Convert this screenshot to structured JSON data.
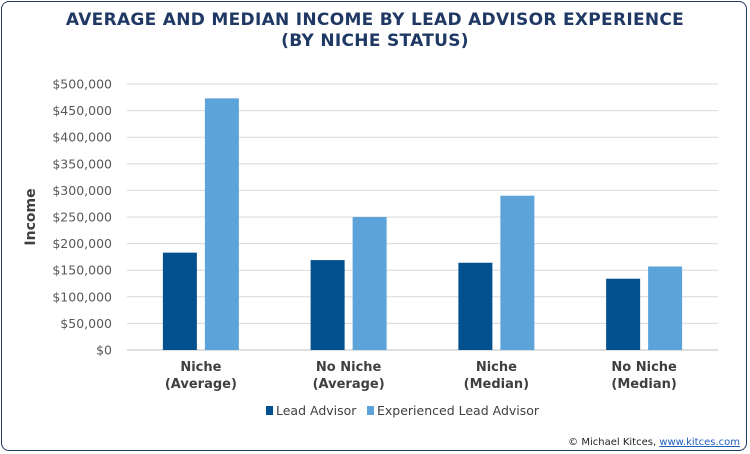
{
  "title": {
    "line1": "AVERAGE AND MEDIAN INCOME BY LEAD ADVISOR EXPERIENCE",
    "line2": "(BY NICHE STATUS)"
  },
  "credit": {
    "prefix": "© Michael Kitces, ",
    "link": "www.kitces.com"
  },
  "colors": {
    "lead_advisor": "#03508f",
    "experienced_lead_advisor": "#5ba3d9",
    "title": "#1f3864",
    "grid": "#d9d9d9"
  },
  "chart_data": {
    "type": "bar",
    "title": "AVERAGE AND MEDIAN INCOME BY LEAD ADVISOR EXPERIENCE (BY NICHE STATUS)",
    "xlabel": "",
    "ylabel": "Income",
    "ylim": [
      0,
      500000
    ],
    "yticks": [
      0,
      50000,
      100000,
      150000,
      200000,
      250000,
      300000,
      350000,
      400000,
      450000,
      500000
    ],
    "ytick_labels": [
      "$0",
      "$50,000",
      "$100,000",
      "$150,000",
      "$200,000",
      "$250,000",
      "$300,000",
      "$350,000",
      "$400,000",
      "$450,000",
      "$500,000"
    ],
    "categories": [
      [
        "Niche",
        "(Average)"
      ],
      [
        "No Niche",
        "(Average)"
      ],
      [
        "Niche",
        "(Median)"
      ],
      [
        "No Niche",
        "(Median)"
      ]
    ],
    "series": [
      {
        "name": "Lead Advisor",
        "values": [
          183000,
          169000,
          164000,
          134000
        ]
      },
      {
        "name": "Experienced Lead Advisor",
        "values": [
          473000,
          250000,
          290000,
          157000
        ]
      }
    ],
    "grid": true,
    "legend": "bottom"
  }
}
